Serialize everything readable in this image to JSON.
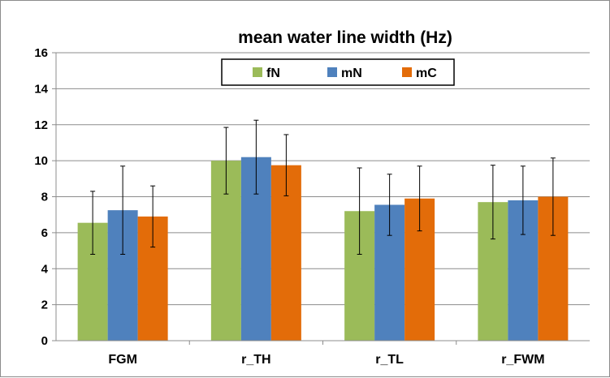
{
  "chart_data": {
    "type": "bar",
    "title": "mean water line width (Hz)",
    "xlabel": "",
    "ylabel": "",
    "ylim": [
      0,
      16
    ],
    "yticks": [
      0,
      2,
      4,
      6,
      8,
      10,
      12,
      14,
      16
    ],
    "grid": true,
    "legend_position": "top-center",
    "categories": [
      "FGM",
      "r_TH",
      "r_TL",
      "r_FWM"
    ],
    "series": [
      {
        "name": "fN",
        "color": "#9bbb59",
        "values": [
          6.55,
          10.0,
          7.2,
          7.7
        ],
        "error": [
          1.75,
          1.85,
          2.4,
          2.05
        ]
      },
      {
        "name": "mN",
        "color": "#4f81bd",
        "values": [
          7.25,
          10.2,
          7.55,
          7.8
        ],
        "error": [
          2.45,
          2.05,
          1.7,
          1.9
        ]
      },
      {
        "name": "mC",
        "color": "#e36c09",
        "values": [
          6.9,
          9.75,
          7.9,
          8.0
        ],
        "error": [
          1.7,
          1.7,
          1.8,
          2.15
        ]
      }
    ]
  }
}
